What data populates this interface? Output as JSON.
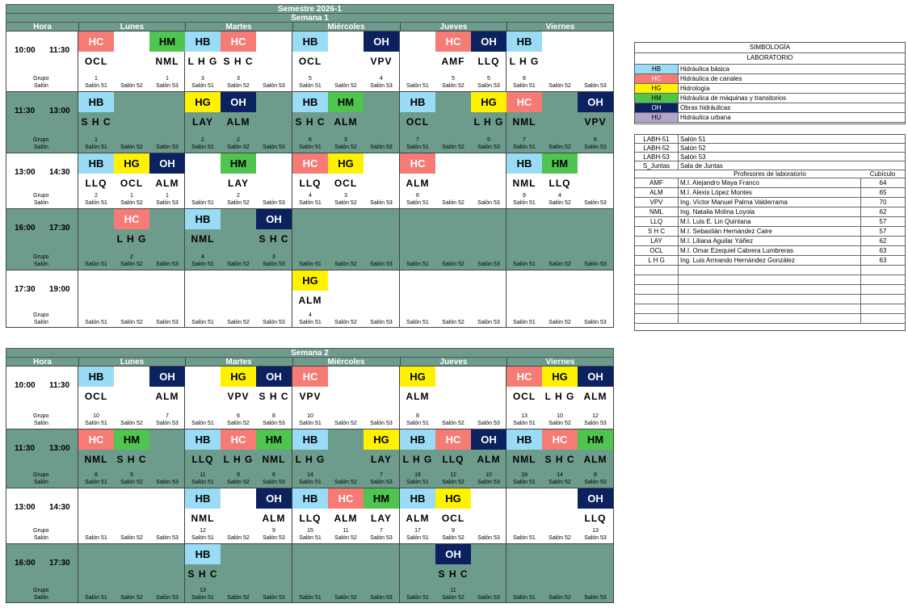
{
  "title": "Semestre 2026-1",
  "colors": {
    "HB": "#9adcf5",
    "HC": "#f57b74",
    "HG": "#fff200",
    "HM": "#4fc44f",
    "OH": "#0c2260",
    "HU": "#b4a3cc",
    "teal": "#6d9b8c"
  },
  "labels": {
    "hora": "Hora",
    "grupo": "Grupo",
    "salon": "Salón"
  },
  "days": [
    "Lunes",
    "Martes",
    "Miércoles",
    "Jueves",
    "Viernes"
  ],
  "salones": [
    "Salón 51",
    "Salón 52",
    "Salón 53"
  ],
  "weeks": [
    {
      "name": "Semana 1",
      "rows": [
        {
          "start": "10:00",
          "end": "11:30",
          "bg": "white",
          "cells": [
            {
              "d": 0,
              "s": 0,
              "sub": "HC",
              "prof": "OCL",
              "g": "1"
            },
            {
              "d": 0,
              "s": 2,
              "sub": "HM",
              "prof": "NML",
              "g": "1"
            },
            {
              "d": 1,
              "s": 0,
              "sub": "HB",
              "prof": "L H G",
              "g": "3"
            },
            {
              "d": 1,
              "s": 1,
              "sub": "HC",
              "prof": "S H C",
              "g": "3"
            },
            {
              "d": 2,
              "s": 0,
              "sub": "HB",
              "prof": "OCL",
              "g": "5"
            },
            {
              "d": 2,
              "s": 2,
              "sub": "OH",
              "prof": "VPV",
              "g": "4"
            },
            {
              "d": 3,
              "s": 1,
              "sub": "HC",
              "prof": "AMF",
              "g": "5"
            },
            {
              "d": 3,
              "s": 2,
              "sub": "OH",
              "prof": "LLQ",
              "g": "5"
            },
            {
              "d": 4,
              "s": 0,
              "sub": "HB",
              "prof": "L H G",
              "g": "8"
            }
          ]
        },
        {
          "start": "11:30",
          "end": "13:00",
          "bg": "teal",
          "cells": [
            {
              "d": 0,
              "s": 0,
              "sub": "HB",
              "prof": "S H C",
              "g": "1"
            },
            {
              "d": 1,
              "s": 0,
              "sub": "HG",
              "prof": "LAY",
              "g": "2"
            },
            {
              "d": 1,
              "s": 1,
              "sub": "OH",
              "prof": "ALM",
              "g": "2"
            },
            {
              "d": 2,
              "s": 0,
              "sub": "HB",
              "prof": "S H C",
              "g": "6"
            },
            {
              "d": 2,
              "s": 1,
              "sub": "HM",
              "prof": "ALM",
              "g": "3"
            },
            {
              "d": 3,
              "s": 0,
              "sub": "HB",
              "prof": "OCL",
              "g": "7"
            },
            {
              "d": 3,
              "s": 2,
              "sub": "HG",
              "prof": "L H G",
              "g": "5"
            },
            {
              "d": 4,
              "s": 0,
              "sub": "HC",
              "prof": "NML",
              "g": "7"
            },
            {
              "d": 4,
              "s": 2,
              "sub": "OH",
              "prof": "VPV",
              "g": "6"
            }
          ]
        },
        {
          "start": "13:00",
          "end": "14:30",
          "bg": "white",
          "cells": [
            {
              "d": 0,
              "s": 0,
              "sub": "HB",
              "prof": "LLQ",
              "g": "2"
            },
            {
              "d": 0,
              "s": 1,
              "sub": "HG",
              "prof": "OCL",
              "g": "1"
            },
            {
              "d": 0,
              "s": 2,
              "sub": "OH",
              "prof": "ALM",
              "g": "1"
            },
            {
              "d": 1,
              "s": 1,
              "sub": "HM",
              "prof": "LAY",
              "g": "2"
            },
            {
              "d": 2,
              "s": 0,
              "sub": "HC",
              "prof": "LLQ",
              "g": "4"
            },
            {
              "d": 2,
              "s": 1,
              "sub": "HG",
              "prof": "OCL",
              "g": "3"
            },
            {
              "d": 3,
              "s": 0,
              "sub": "HC",
              "prof": "ALM",
              "g": "6"
            },
            {
              "d": 4,
              "s": 0,
              "sub": "HB",
              "prof": "NML",
              "g": "9"
            },
            {
              "d": 4,
              "s": 1,
              "sub": "HM",
              "prof": "LLQ",
              "g": "4"
            }
          ]
        },
        {
          "start": "16:00",
          "end": "17:30",
          "bg": "teal",
          "cells": [
            {
              "d": 0,
              "s": 1,
              "sub": "HC",
              "prof": "L H G",
              "g": "2"
            },
            {
              "d": 1,
              "s": 0,
              "sub": "HB",
              "prof": "NML",
              "g": "4"
            },
            {
              "d": 1,
              "s": 2,
              "sub": "OH",
              "prof": "S H C",
              "g": "3"
            }
          ]
        },
        {
          "start": "17:30",
          "end": "19:00",
          "bg": "white",
          "cells": [
            {
              "d": 2,
              "s": 0,
              "sub": "HG",
              "prof": "ALM",
              "g": "4"
            }
          ]
        }
      ]
    },
    {
      "name": "Semana 2",
      "rows": [
        {
          "start": "10:00",
          "end": "11:30",
          "bg": "white",
          "cells": [
            {
              "d": 0,
              "s": 0,
              "sub": "HB",
              "prof": "OCL",
              "g": "10"
            },
            {
              "d": 0,
              "s": 2,
              "sub": "OH",
              "prof": "ALM",
              "g": "7"
            },
            {
              "d": 1,
              "s": 1,
              "sub": "HG",
              "prof": "VPV",
              "g": "6"
            },
            {
              "d": 1,
              "s": 2,
              "sub": "OH",
              "prof": "S H C",
              "g": "8"
            },
            {
              "d": 2,
              "s": 0,
              "sub": "HC",
              "prof": "VPV",
              "g": "10"
            },
            {
              "d": 3,
              "s": 0,
              "sub": "HG",
              "prof": "ALM",
              "g": "8"
            },
            {
              "d": 4,
              "s": 0,
              "sub": "HC",
              "prof": "OCL",
              "g": "13"
            },
            {
              "d": 4,
              "s": 1,
              "sub": "HG",
              "prof": "L H G",
              "g": "10"
            },
            {
              "d": 4,
              "s": 2,
              "sub": "OH",
              "prof": "ALM",
              "g": "12"
            }
          ]
        },
        {
          "start": "11:30",
          "end": "13:00",
          "bg": "teal",
          "cells": [
            {
              "d": 0,
              "s": 0,
              "sub": "HC",
              "prof": "NML",
              "g": "8"
            },
            {
              "d": 0,
              "s": 1,
              "sub": "HM",
              "prof": "S H C",
              "g": "5"
            },
            {
              "d": 1,
              "s": 0,
              "sub": "HB",
              "prof": "LLQ",
              "g": "11"
            },
            {
              "d": 1,
              "s": 1,
              "sub": "HC",
              "prof": "L H G",
              "g": "9"
            },
            {
              "d": 1,
              "s": 2,
              "sub": "HM",
              "prof": "NML",
              "g": "6"
            },
            {
              "d": 2,
              "s": 0,
              "sub": "HB",
              "prof": "L H G",
              "g": "14"
            },
            {
              "d": 2,
              "s": 2,
              "sub": "HG",
              "prof": "LAY",
              "g": "7"
            },
            {
              "d": 3,
              "s": 0,
              "sub": "HB",
              "prof": "L H G",
              "g": "16"
            },
            {
              "d": 3,
              "s": 1,
              "sub": "HC",
              "prof": "LLQ",
              "g": "12"
            },
            {
              "d": 3,
              "s": 2,
              "sub": "OH",
              "prof": "ALM",
              "g": "10"
            },
            {
              "d": 4,
              "s": 0,
              "sub": "HB",
              "prof": "NML",
              "g": "18"
            },
            {
              "d": 4,
              "s": 1,
              "sub": "HC",
              "prof": "S H C",
              "g": "14"
            },
            {
              "d": 4,
              "s": 2,
              "sub": "HM",
              "prof": "ALM",
              "g": "8"
            }
          ]
        },
        {
          "start": "13:00",
          "end": "14:30",
          "bg": "white",
          "cells": [
            {
              "d": 1,
              "s": 0,
              "sub": "HB",
              "prof": "NML",
              "g": "12"
            },
            {
              "d": 1,
              "s": 2,
              "sub": "OH",
              "prof": "ALM",
              "g": "9"
            },
            {
              "d": 2,
              "s": 0,
              "sub": "HB",
              "prof": "LLQ",
              "g": "15"
            },
            {
              "d": 2,
              "s": 1,
              "sub": "HC",
              "prof": "ALM",
              "g": "11"
            },
            {
              "d": 2,
              "s": 2,
              "sub": "HM",
              "prof": "LAY",
              "g": "7"
            },
            {
              "d": 3,
              "s": 0,
              "sub": "HB",
              "prof": "ALM",
              "g": "17"
            },
            {
              "d": 3,
              "s": 1,
              "sub": "HG",
              "prof": "OCL",
              "g": "9"
            },
            {
              "d": 4,
              "s": 2,
              "sub": "OH",
              "prof": "LLQ",
              "g": "13"
            }
          ]
        },
        {
          "start": "16:00",
          "end": "17:30",
          "bg": "teal",
          "cells": [
            {
              "d": 1,
              "s": 0,
              "sub": "HB",
              "prof": "S H C",
              "g": "13"
            },
            {
              "d": 3,
              "s": 1,
              "sub": "OH",
              "prof": "S H C",
              "g": "11"
            }
          ]
        }
      ]
    }
  ],
  "legend": {
    "title1": "SIMBOLOGÍA",
    "title2": "LABORATORIO",
    "items": [
      {
        "code": "HB",
        "name": "Hidráulica básica"
      },
      {
        "code": "HC",
        "name": "Hidráulica de canales"
      },
      {
        "code": "HG",
        "name": "Hidrología"
      },
      {
        "code": "HM",
        "name": "Hidráulica de máquinas y transitorios"
      },
      {
        "code": "OH",
        "name": "Obras hidráulicas"
      },
      {
        "code": "HU",
        "name": "Hidráulica urbana"
      }
    ]
  },
  "rooms": [
    {
      "code": "LABH-51",
      "name": "Salón 51"
    },
    {
      "code": "LABH-52",
      "name": "Salón 52"
    },
    {
      "code": "LABH-53",
      "name": "Salón 53"
    },
    {
      "code": "S_Juntas",
      "name": "Sala de Juntas"
    }
  ],
  "profs_header": {
    "name": "Profesores de laboratorio",
    "cub": "Cubículo"
  },
  "profs": [
    {
      "code": "AMF",
      "name": "M.I. Alejandro Maya Franco",
      "cub": "64"
    },
    {
      "code": "ALM",
      "name": "M.I. Alexis López Montes",
      "cub": "65"
    },
    {
      "code": "VPV",
      "name": "Ing. Víctor Manuel Palma Valderrama",
      "cub": "70"
    },
    {
      "code": "NML",
      "name": "Ing. Natalia Molina Loyola",
      "cub": "62"
    },
    {
      "code": "LLQ",
      "name": "M.I. Luis E. Lin Quintana",
      "cub": "57"
    },
    {
      "code": "S H C",
      "name": "M.I. Sebastián Hernández Caire",
      "cub": "57"
    },
    {
      "code": "LAY",
      "name": "M.I. Liliana Aguilar Yáñez",
      "cub": "62"
    },
    {
      "code": "OCL",
      "name": "M.I. Omar Ezequiel Cabrera Lumbreras",
      "cub": "63"
    },
    {
      "code": "L H G",
      "name": "Ing. Luis Armando Hernández González",
      "cub": "63"
    }
  ]
}
